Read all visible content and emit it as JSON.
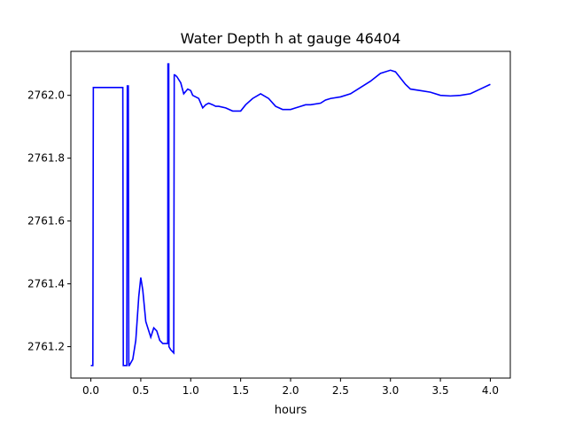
{
  "chart_data": {
    "type": "line",
    "title": "Water Depth h at gauge 46404",
    "xlabel": "hours",
    "ylabel": "",
    "xlim": [
      -0.2,
      4.2
    ],
    "ylim": [
      2761.1,
      2762.14
    ],
    "grid": false,
    "x_ticks": [
      0.0,
      0.5,
      1.0,
      1.5,
      2.0,
      2.5,
      3.0,
      3.5,
      4.0
    ],
    "x_tick_labels": [
      "0.0",
      "0.5",
      "1.0",
      "1.5",
      "2.0",
      "2.5",
      "3.0",
      "3.5",
      "4.0"
    ],
    "y_ticks": [
      2761.2,
      2761.4,
      2761.6,
      2761.8,
      2762.0
    ],
    "y_tick_labels": [
      "2761.2",
      "2761.4",
      "2761.6",
      "2761.8",
      "2762.0"
    ],
    "series": [
      {
        "color": "#0000ff",
        "x": [
          0.0,
          0.02,
          0.025,
          0.32,
          0.325,
          0.36,
          0.365,
          0.375,
          0.38,
          0.385,
          0.42,
          0.45,
          0.48,
          0.5,
          0.52,
          0.55,
          0.6,
          0.63,
          0.66,
          0.69,
          0.72,
          0.75,
          0.77,
          0.772,
          0.78,
          0.782,
          0.8,
          0.83,
          0.835,
          0.84,
          0.86,
          0.9,
          0.93,
          0.97,
          1.0,
          1.02,
          1.05,
          1.08,
          1.12,
          1.15,
          1.18,
          1.22,
          1.25,
          1.28,
          1.35,
          1.42,
          1.5,
          1.55,
          1.62,
          1.7,
          1.78,
          1.85,
          1.92,
          2.0,
          2.05,
          2.1,
          2.15,
          2.2,
          2.3,
          2.35,
          2.4,
          2.5,
          2.6,
          2.7,
          2.8,
          2.9,
          3.0,
          3.05,
          3.1,
          3.15,
          3.2,
          3.3,
          3.4,
          3.5,
          3.6,
          3.7,
          3.8,
          3.9,
          4.0
        ],
        "y": [
          2761.14,
          2761.14,
          2762.025,
          2762.025,
          2761.14,
          2761.14,
          2762.03,
          2762.03,
          2761.14,
          2761.14,
          2761.16,
          2761.22,
          2761.36,
          2761.42,
          2761.38,
          2761.28,
          2761.23,
          2761.26,
          2761.25,
          2761.22,
          2761.21,
          2761.21,
          2761.21,
          2762.1,
          2762.1,
          2761.2,
          2761.19,
          2761.18,
          2762.065,
          2762.065,
          2762.06,
          2762.04,
          2762.005,
          2762.02,
          2762.015,
          2762.0,
          2761.995,
          2761.99,
          2761.96,
          2761.97,
          2761.975,
          2761.97,
          2761.965,
          2761.965,
          2761.96,
          2761.95,
          2761.95,
          2761.97,
          2761.99,
          2762.005,
          2761.99,
          2761.965,
          2761.955,
          2761.955,
          2761.96,
          2761.965,
          2761.97,
          2761.97,
          2761.975,
          2761.985,
          2761.99,
          2761.995,
          2762.005,
          2762.025,
          2762.045,
          2762.07,
          2762.08,
          2762.075,
          2762.055,
          2762.035,
          2762.02,
          2762.015,
          2762.01,
          2762.0,
          2761.998,
          2762.0,
          2762.005,
          2762.02,
          2762.035
        ]
      }
    ]
  }
}
